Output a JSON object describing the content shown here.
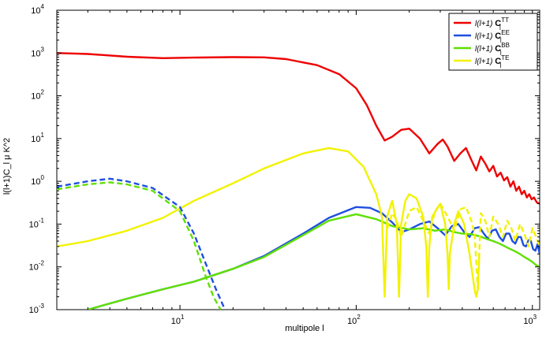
{
  "chart_data": {
    "type": "line",
    "xlabel": "multipole  l",
    "ylabel": "l(l+1)C_l μ K^2",
    "xscale": "log",
    "yscale": "log",
    "xlim": [
      2,
      1100
    ],
    "ylim": [
      0.001,
      10000
    ],
    "x_ticks": [
      {
        "value": 10,
        "base": "10",
        "exp": "1"
      },
      {
        "value": 100,
        "base": "10",
        "exp": "2"
      },
      {
        "value": 1000,
        "base": "10",
        "exp": "3"
      }
    ],
    "y_ticks": [
      {
        "value": 0.001,
        "base": "10",
        "exp": "-3"
      },
      {
        "value": 0.01,
        "base": "10",
        "exp": "-2"
      },
      {
        "value": 0.1,
        "base": "10",
        "exp": "-1"
      },
      {
        "value": 1,
        "base": "10",
        "exp": "0"
      },
      {
        "value": 10,
        "base": "10",
        "exp": "1"
      },
      {
        "value": 100,
        "base": "10",
        "exp": "2"
      },
      {
        "value": 1000,
        "base": "10",
        "exp": "3"
      },
      {
        "value": 10000,
        "base": "10",
        "exp": "4"
      }
    ],
    "grid": false,
    "legend_position": "top-right",
    "series": [
      {
        "name": "l(l+1) C_l^TT",
        "legend_prefix": "l(l+1) ",
        "legend_symbol": "C",
        "legend_sup": "TT",
        "legend_sub": "l",
        "color": "#ee0000",
        "style": "solid",
        "x": [
          2,
          3,
          5,
          8,
          12,
          20,
          30,
          40,
          60,
          80,
          100,
          115,
          130,
          145,
          160,
          180,
          200,
          230,
          260,
          290,
          310,
          330,
          360,
          390,
          420,
          450,
          480,
          510,
          540,
          570,
          600,
          630,
          660,
          690,
          720,
          750,
          780,
          810,
          840,
          870,
          900,
          930,
          960,
          990,
          1020,
          1060,
          1100
        ],
        "y": [
          1000,
          950,
          820,
          760,
          780,
          800,
          790,
          720,
          520,
          320,
          150,
          60,
          20,
          9,
          11,
          16,
          17,
          10,
          4.5,
          7.5,
          9.5,
          6.5,
          3,
          4.5,
          6,
          3.2,
          1.8,
          3.8,
          2.6,
          1.7,
          2.3,
          1.3,
          1.6,
          1.05,
          1.25,
          0.75,
          1.0,
          0.6,
          0.75,
          0.5,
          0.6,
          0.42,
          0.5,
          0.38,
          0.42,
          0.32,
          0.3
        ]
      },
      {
        "name": "l(l+1) C_l^EE",
        "legend_prefix": "l(l+1) ",
        "legend_symbol": "C",
        "legend_sup": "EE",
        "legend_sub": "l",
        "color": "#1f4fe0",
        "style": "solid",
        "x": [
          3,
          5,
          8,
          12,
          20,
          30,
          50,
          70,
          100,
          120,
          140,
          160,
          180,
          200,
          230,
          260,
          290,
          320,
          350,
          380,
          410,
          440,
          470,
          500,
          530,
          560,
          590,
          620,
          650,
          680,
          710,
          740,
          770,
          800,
          830,
          860,
          890,
          920,
          950,
          980,
          1010,
          1040,
          1070,
          1100
        ],
        "y": [
          0.001,
          0.0018,
          0.003,
          0.0045,
          0.009,
          0.018,
          0.06,
          0.14,
          0.25,
          0.24,
          0.18,
          0.11,
          0.065,
          0.075,
          0.1,
          0.115,
          0.08,
          0.055,
          0.09,
          0.1,
          0.065,
          0.05,
          0.08,
          0.085,
          0.06,
          0.045,
          0.07,
          0.075,
          0.05,
          0.04,
          0.06,
          0.06,
          0.04,
          0.035,
          0.05,
          0.05,
          0.032,
          0.03,
          0.042,
          0.04,
          0.026,
          0.024,
          0.034,
          0.02
        ]
      },
      {
        "name": "l(l+1) C_l^BB",
        "legend_prefix": "l(l+1) ",
        "legend_symbol": "C",
        "legend_sup": "BB",
        "legend_sub": "l",
        "color": "#5fe000",
        "style": "solid",
        "x": [
          3,
          5,
          8,
          12,
          20,
          30,
          50,
          70,
          100,
          130,
          160,
          200,
          240,
          280,
          320,
          360,
          400,
          450,
          500,
          550,
          600,
          650,
          700,
          750,
          800,
          850,
          900,
          950,
          1000,
          1050,
          1100
        ],
        "y": [
          0.001,
          0.0018,
          0.003,
          0.0045,
          0.009,
          0.017,
          0.055,
          0.12,
          0.17,
          0.13,
          0.09,
          0.075,
          0.08,
          0.07,
          0.075,
          0.065,
          0.06,
          0.058,
          0.052,
          0.045,
          0.04,
          0.035,
          0.03,
          0.026,
          0.023,
          0.02,
          0.017,
          0.015,
          0.013,
          0.011,
          0.01
        ]
      },
      {
        "name": "l(l+1) C_l^TE",
        "legend_prefix": "l(l+1) ",
        "legend_symbol": "C",
        "legend_sup": "TE",
        "legend_sub": "l",
        "color": "#f2f200",
        "style": "solid",
        "x": [
          2,
          3,
          5,
          8,
          12,
          20,
          30,
          50,
          70,
          90,
          110,
          130,
          140,
          145,
          150,
          160,
          170,
          175,
          180,
          190,
          200,
          220,
          240,
          250,
          255,
          260,
          270,
          300,
          320,
          330,
          335,
          340,
          360,
          380,
          410,
          440,
          470,
          480,
          490,
          500
        ],
        "y": [
          0.03,
          0.04,
          0.07,
          0.14,
          0.35,
          0.9,
          2.0,
          4.5,
          6,
          5,
          2.2,
          0.5,
          0.15,
          0.002,
          0.15,
          0.35,
          0.1,
          0.002,
          0.1,
          0.35,
          0.5,
          0.4,
          0.15,
          0.03,
          0.002,
          0.03,
          0.15,
          0.3,
          0.1,
          0.02,
          0.003,
          0.02,
          0.1,
          0.2,
          0.1,
          0.02,
          0.003,
          0.002,
          0.003,
          0.02
        ]
      },
      {
        "name": "dashed EE (large scale)",
        "color": "#1f4fe0",
        "style": "dashed",
        "x": [
          2,
          3,
          4,
          5,
          7,
          10,
          12,
          14,
          16,
          18
        ],
        "y": [
          0.75,
          1.0,
          1.15,
          1.0,
          0.7,
          0.25,
          0.06,
          0.012,
          0.003,
          0.001
        ]
      },
      {
        "name": "dashed BB (large scale)",
        "color": "#5fe000",
        "style": "dashed",
        "x": [
          2,
          3,
          4,
          5,
          7,
          10,
          12,
          14,
          15.5,
          17
        ],
        "y": [
          0.65,
          0.85,
          0.95,
          0.85,
          0.6,
          0.2,
          0.04,
          0.006,
          0.002,
          0.001
        ]
      },
      {
        "name": "dashed TE (negative)",
        "color": "#f2f200",
        "style": "dashed",
        "x": [
          150,
          160,
          170,
          180,
          200,
          220,
          240,
          260,
          280,
          300,
          330,
          360,
          390,
          420,
          450,
          470,
          490,
          510,
          540,
          570,
          600,
          640,
          680,
          720,
          760,
          800,
          850,
          900,
          950,
          1000,
          1050,
          1100
        ],
        "y": [
          0.08,
          0.18,
          0.12,
          0.05,
          0.2,
          0.25,
          0.12,
          0.06,
          0.2,
          0.3,
          0.15,
          0.07,
          0.22,
          0.25,
          0.12,
          0.06,
          0.003,
          0.18,
          0.12,
          0.05,
          0.15,
          0.1,
          0.05,
          0.12,
          0.08,
          0.04,
          0.1,
          0.06,
          0.03,
          0.08,
          0.05,
          0.03
        ]
      }
    ]
  }
}
